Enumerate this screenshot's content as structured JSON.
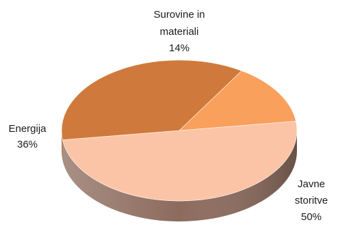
{
  "chart_data": {
    "type": "pie",
    "style": "3d",
    "slices": [
      {
        "name": "Surovine in materiali",
        "label_lines": [
          "Surovine in",
          "materiali"
        ],
        "value": 14,
        "value_label": "14%",
        "color": "#F9A05C",
        "side_color": "#C86B29"
      },
      {
        "name": "Javne storitve",
        "label_lines": [
          "Javne",
          "storitve"
        ],
        "value": 50,
        "value_label": "50%",
        "color": "#FBC4A6",
        "side_color": "#8C6B5D"
      },
      {
        "name": "Energija",
        "label_lines": [
          "Energija"
        ],
        "value": 36,
        "value_label": "36%",
        "color": "#CF7A3C",
        "side_color": "#9B5422"
      }
    ]
  }
}
